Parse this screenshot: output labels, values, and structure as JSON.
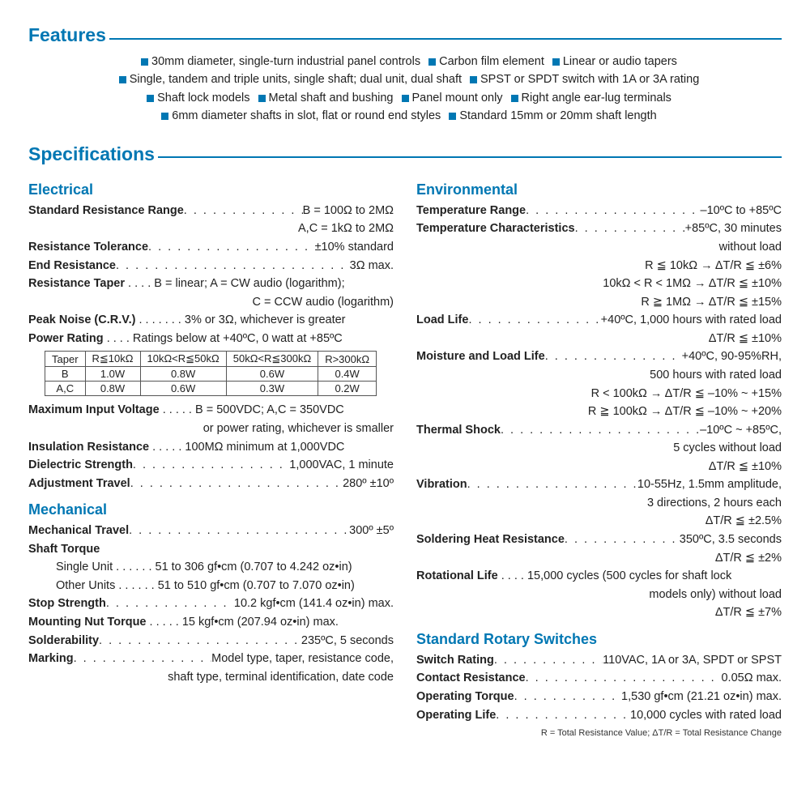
{
  "colors": {
    "accent": "#0077b3",
    "text": "#222"
  },
  "headers": {
    "features": "Features",
    "specifications": "Specifications",
    "electrical": "Electrical",
    "mechanical": "Mechanical",
    "environmental": "Environmental",
    "switches": "Standard Rotary Switches"
  },
  "features": [
    "30mm diameter, single-turn industrial panel controls",
    "Carbon film element",
    "Linear or audio tapers",
    "Single, tandem and triple units, single shaft; dual unit, dual shaft",
    "SPST or SPDT switch with 1A or 3A rating",
    "Shaft lock models",
    "Metal shaft and bushing",
    "Panel mount only",
    "Right angle ear-lug terminals",
    "6mm diameter shafts in slot, flat or round end styles",
    "Standard 15mm or 20mm shaft length"
  ],
  "electrical": {
    "std_res_range_label": "Standard Resistance Range",
    "std_res_range_val1": "B = 100Ω to 2MΩ",
    "std_res_range_val2": "A,C = 1kΩ to 2MΩ",
    "res_tol_label": "Resistance Tolerance",
    "res_tol_val": "±10% standard",
    "end_res_label": "End Resistance",
    "end_res_val": "3Ω max.",
    "res_taper_label": "Resistance Taper",
    "res_taper_val1": "B = linear; A = CW audio (logarithm);",
    "res_taper_val2": "C = CCW audio (logarithm)",
    "peak_noise_label": "Peak Noise (C.R.V.)",
    "peak_noise_val": "3% or 3Ω, whichever is greater",
    "power_rating_label": "Power Rating",
    "power_rating_val": "Ratings below at +40ºC, 0 watt at +85ºC",
    "max_input_label": "Maximum Input Voltage",
    "max_input_val1": "B = 500VDC; A,C = 350VDC",
    "max_input_val2": "or power rating, whichever is smaller",
    "ins_res_label": "Insulation Resistance",
    "ins_res_val": "100MΩ minimum at 1,000VDC",
    "diel_label": "Dielectric Strength",
    "diel_val": "1,000VAC, 1 minute",
    "adj_travel_label": "Adjustment Travel",
    "adj_travel_val": "280º ±10º"
  },
  "power_table": {
    "headers": [
      "Taper",
      "R≦10kΩ",
      "10kΩ<R≦50kΩ",
      "50kΩ<R≦300kΩ",
      "R>300kΩ"
    ],
    "rows": [
      [
        "B",
        "1.0W",
        "0.8W",
        "0.6W",
        "0.4W"
      ],
      [
        "A,C",
        "0.8W",
        "0.6W",
        "0.3W",
        "0.2W"
      ]
    ]
  },
  "mechanical": {
    "mech_travel_label": "Mechanical Travel",
    "mech_travel_val": "300º ±5º",
    "shaft_torque_label": "Shaft Torque",
    "shaft_torque_single_label": "Single Unit",
    "shaft_torque_single_val": "51 to 306 gf•cm (0.707 to 4.242 oz•in)",
    "shaft_torque_other_label": "Other Units",
    "shaft_torque_other_val": "51 to 510 gf•cm (0.707 to 7.070 oz•in)",
    "stop_label": "Stop Strength",
    "stop_val": "10.2 kgf•cm (141.4 oz•in) max.",
    "mount_label": "Mounting Nut Torque",
    "mount_val": "15 kgf•cm (207.94 oz•in) max.",
    "solder_label": "Solderability",
    "solder_val": "235ºC, 5 seconds",
    "marking_label": "Marking",
    "marking_val1": "Model type, taper, resistance code,",
    "marking_val2": "shaft type, terminal identification, date code"
  },
  "environmental": {
    "temp_range_label": "Temperature Range",
    "temp_range_val": "–10ºC to +85ºC",
    "temp_char_label": "Temperature Characteristics",
    "temp_char_val1": "+85ºC, 30 minutes",
    "temp_char_val2": "without load",
    "temp_char_val3": "R ≦ 10kΩ  → ΔT/R ≦ ±6%",
    "temp_char_val4": "10kΩ < R < 1MΩ → ΔT/R ≦ ±10%",
    "temp_char_val5": "R ≧ 1MΩ → ΔT/R ≦ ±15%",
    "load_life_label": "Load Life",
    "load_life_val1": "+40ºC, 1,000 hours with rated load",
    "load_life_val2": "ΔT/R ≦ ±10%",
    "moist_label": "Moisture and Load Life",
    "moist_val1": "+40ºC, 90-95%RH,",
    "moist_val2": "500 hours with rated load",
    "moist_val3": "R < 100kΩ → ΔT/R ≦ –10% ~ +15%",
    "moist_val4": "R ≧ 100kΩ → ΔT/R ≦ –10% ~ +20%",
    "thermal_label": "Thermal Shock",
    "thermal_val1": "–10ºC ~ +85ºC,",
    "thermal_val2": "5 cycles without load",
    "thermal_val3": "ΔT/R ≦ ±10%",
    "vib_label": "Vibration",
    "vib_val1": "10-55Hz, 1.5mm amplitude,",
    "vib_val2": "3 directions, 2 hours each",
    "vib_val3": "ΔT/R ≦ ±2.5%",
    "sold_heat_label": "Soldering Heat Resistance",
    "sold_heat_val1": "350ºC, 3.5 seconds",
    "sold_heat_val2": "ΔT/R ≦ ±2%",
    "rot_life_label": "Rotational Life",
    "rot_life_val1": "15,000 cycles (500 cycles for shaft lock",
    "rot_life_val2": "models only) without load",
    "rot_life_val3": "ΔT/R ≦ ±7%"
  },
  "switches": {
    "rating_label": "Switch Rating",
    "rating_val": "110VAC, 1A or 3A, SPDT or SPST",
    "contact_label": "Contact Resistance",
    "contact_val": "0.05Ω max.",
    "op_torque_label": "Operating Torque",
    "op_torque_val": "1,530 gf•cm (21.21 oz•in) max.",
    "op_life_label": "Operating Life",
    "op_life_val": "10,000 cycles with rated load"
  },
  "footnote": "R = Total Resistance Value; ΔT/R = Total Resistance Change"
}
